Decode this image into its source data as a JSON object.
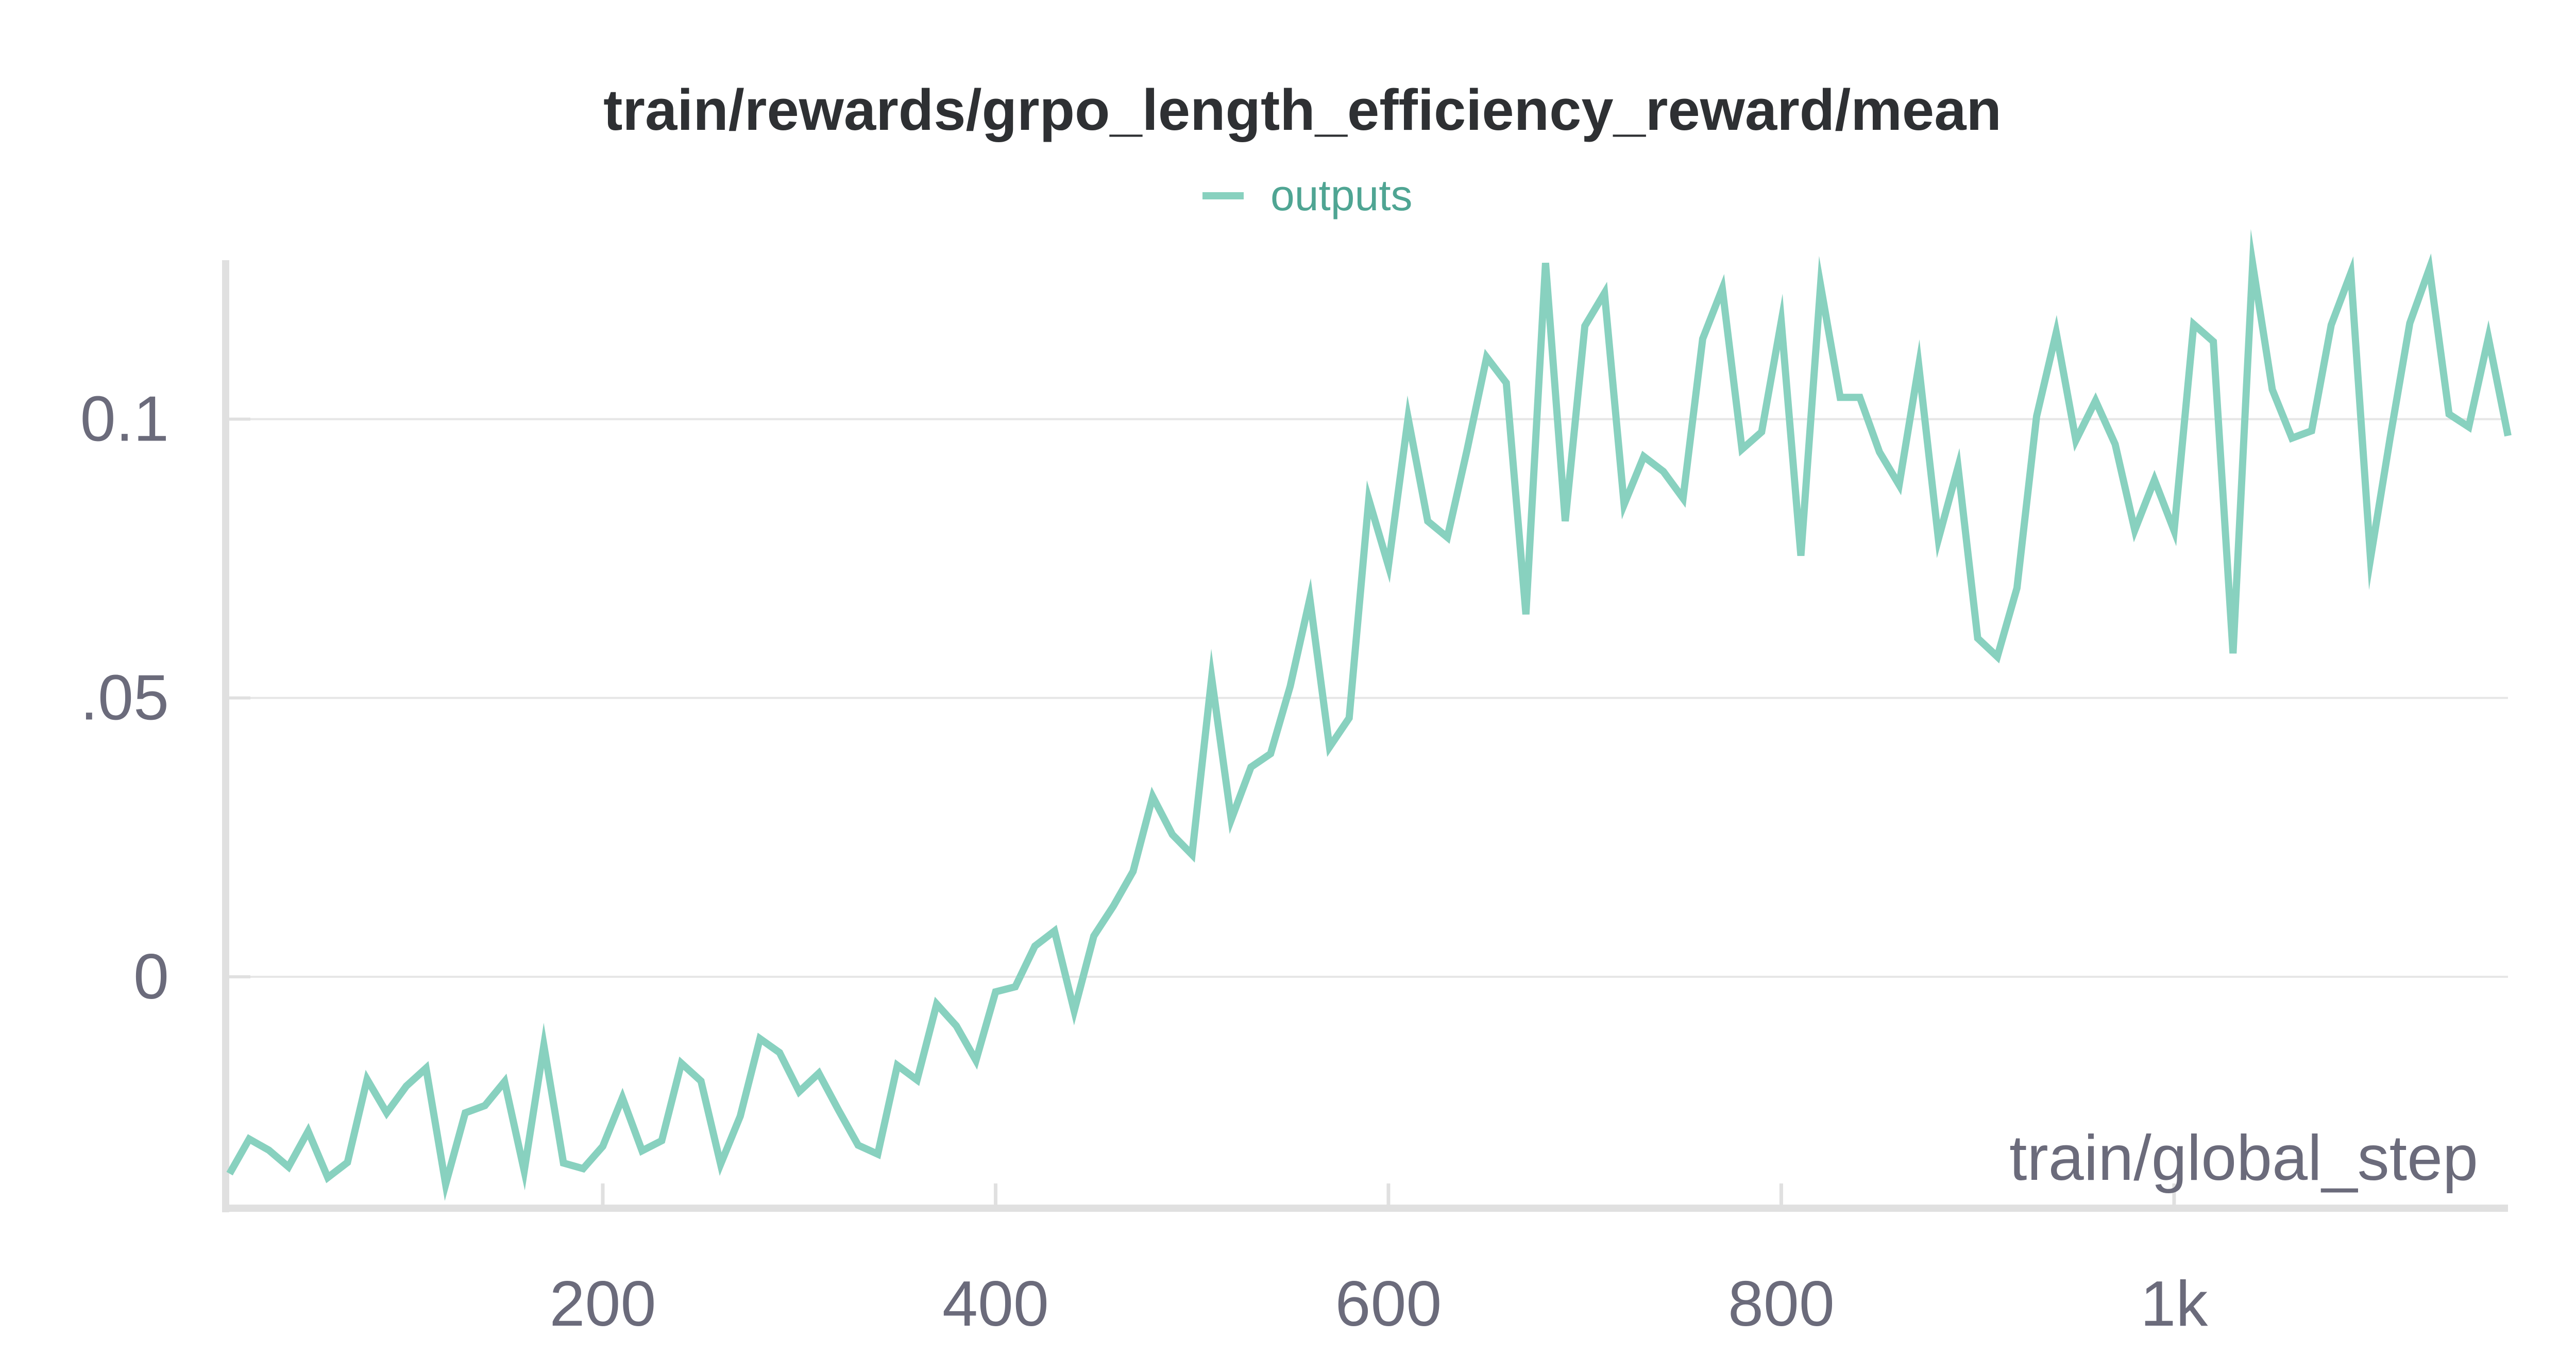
{
  "chart_data": {
    "type": "line",
    "title": "train/rewards/grpo_length_efficiency_reward/mean",
    "xlabel": "train/global_step",
    "ylabel": "",
    "legend": {
      "placement": "top-center",
      "entries": [
        "outputs"
      ]
    },
    "xlim": [
      8,
      1170
    ],
    "ylim": [
      -0.0415,
      0.1285
    ],
    "x_ticks": [
      {
        "value": 200,
        "label": "200"
      },
      {
        "value": 400,
        "label": "400"
      },
      {
        "value": 600,
        "label": "600"
      },
      {
        "value": 800,
        "label": "800"
      },
      {
        "value": 1000,
        "label": "1k"
      }
    ],
    "y_ticks": [
      {
        "value": 0,
        "label": "0"
      },
      {
        "value": 0.05,
        "label": ".05"
      },
      {
        "value": 0.1,
        "label": "0.1"
      }
    ],
    "grid": "horizontal",
    "colors": {
      "series": "#88d1bf",
      "legend_text": "#4fa593",
      "title": "#2e3033",
      "tick_text": "#6b6b7b",
      "grid": "#e6e6e6",
      "axis": "#e0e0e0"
    },
    "series": [
      {
        "name": "outputs",
        "x": [
          10,
          20,
          30,
          40,
          50,
          60,
          70,
          80,
          90,
          100,
          110,
          120,
          130,
          140,
          150,
          160,
          170,
          180,
          190,
          200,
          210,
          220,
          230,
          240,
          250,
          260,
          270,
          280,
          290,
          300,
          310,
          320,
          330,
          340,
          350,
          360,
          370,
          380,
          390,
          400,
          410,
          420,
          430,
          440,
          450,
          460,
          470,
          480,
          490,
          500,
          510,
          520,
          530,
          540,
          550,
          560,
          570,
          580,
          590,
          600,
          610,
          620,
          630,
          640,
          650,
          660,
          670,
          680,
          690,
          700,
          710,
          720,
          730,
          740,
          750,
          760,
          770,
          780,
          790,
          800,
          810,
          820,
          830,
          840,
          850,
          860,
          870,
          880,
          890,
          900,
          910,
          920,
          930,
          940,
          950,
          960,
          970,
          980,
          990,
          1000,
          1010,
          1020,
          1030,
          1040,
          1050,
          1060,
          1070,
          1080,
          1090,
          1100,
          1110,
          1120,
          1130,
          1140,
          1150,
          1160,
          1170
        ],
        "values": [
          -0.0353,
          -0.0291,
          -0.0311,
          -0.0341,
          -0.0277,
          -0.036,
          -0.0333,
          -0.0184,
          -0.0244,
          -0.0196,
          -0.0164,
          -0.0372,
          -0.0244,
          -0.0231,
          -0.0188,
          -0.0348,
          -0.0123,
          -0.0334,
          -0.0344,
          -0.0304,
          -0.0217,
          -0.0312,
          -0.0294,
          -0.0155,
          -0.0187,
          -0.0336,
          -0.025,
          -0.0111,
          -0.0136,
          -0.0206,
          -0.0173,
          -0.0239,
          -0.0302,
          -0.0318,
          -0.0159,
          -0.0185,
          -0.0049,
          -0.0088,
          -0.015,
          -0.0027,
          -0.0018,
          0.0055,
          0.0082,
          -0.0061,
          0.0073,
          0.0127,
          0.0189,
          0.0323,
          0.0255,
          0.0219,
          0.0536,
          0.0282,
          0.0376,
          0.04,
          0.0521,
          0.0678,
          0.0412,
          0.0464,
          0.0856,
          0.0737,
          0.1002,
          0.0817,
          0.0788,
          0.0944,
          0.1111,
          0.1065,
          0.065,
          0.128,
          0.0817,
          0.1167,
          0.1226,
          0.0847,
          0.0933,
          0.0906,
          0.0858,
          0.1144,
          0.1234,
          0.0946,
          0.0977,
          0.1175,
          0.0755,
          0.124,
          0.1039,
          0.1039,
          0.0941,
          0.0882,
          0.1096,
          0.0785,
          0.0914,
          0.0607,
          0.0574,
          0.0697,
          0.1005,
          0.1155,
          0.0962,
          0.1033,
          0.0955,
          0.0801,
          0.0891,
          0.08,
          0.117,
          0.1139,
          0.058,
          0.1278,
          0.1053,
          0.0966,
          0.0979,
          0.1169,
          0.1262,
          0.075,
          0.0967,
          0.1172,
          0.127,
          0.1009,
          0.0986,
          0.1146,
          0.097
        ]
      }
    ]
  }
}
